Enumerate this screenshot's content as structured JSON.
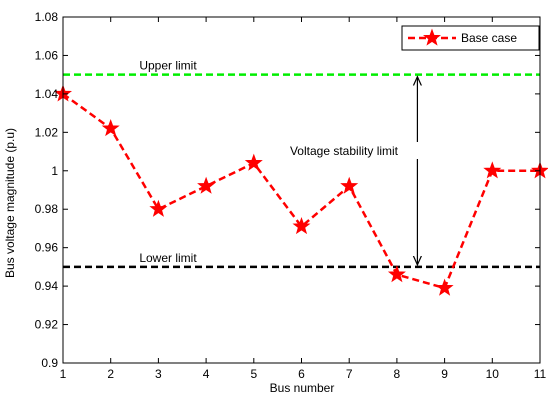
{
  "chart_data": {
    "type": "line",
    "title": "",
    "xlabel": "Bus number",
    "ylabel": "Bus voltage magnitude (p.u)",
    "xlim": [
      1,
      11
    ],
    "ylim": [
      0.9,
      1.08
    ],
    "x_ticks": [
      "1",
      "2",
      "3",
      "4",
      "5",
      "6",
      "7",
      "8",
      "9",
      "10",
      "11"
    ],
    "y_ticks": [
      "0.9",
      "0.92",
      "0.94",
      "0.96",
      "0.98",
      "1",
      "1.02",
      "1.04",
      "1.06",
      "1.08"
    ],
    "x": [
      1,
      2,
      3,
      4,
      5,
      6,
      7,
      8,
      9,
      10,
      11
    ],
    "series": [
      {
        "name": "Base case",
        "color": "#ff0000",
        "line_style": "dashed",
        "marker": "star",
        "values": [
          1.04,
          1.022,
          0.98,
          0.992,
          1.004,
          0.971,
          0.992,
          0.946,
          0.939,
          1.0,
          1.0
        ]
      }
    ],
    "reference_lines": [
      {
        "label": "Upper limit",
        "y": 1.05,
        "color": "#00ee00",
        "line_style": "dashed"
      },
      {
        "label": "Lower limit",
        "y": 0.95,
        "color": "#000000",
        "line_style": "dashed"
      }
    ],
    "annotation": {
      "text": "Voltage stability limit",
      "x": 8.43,
      "y_from": 0.95,
      "y_to": 1.05,
      "type": "double-arrow"
    },
    "legend": {
      "position": "top-right"
    },
    "grid": false
  }
}
